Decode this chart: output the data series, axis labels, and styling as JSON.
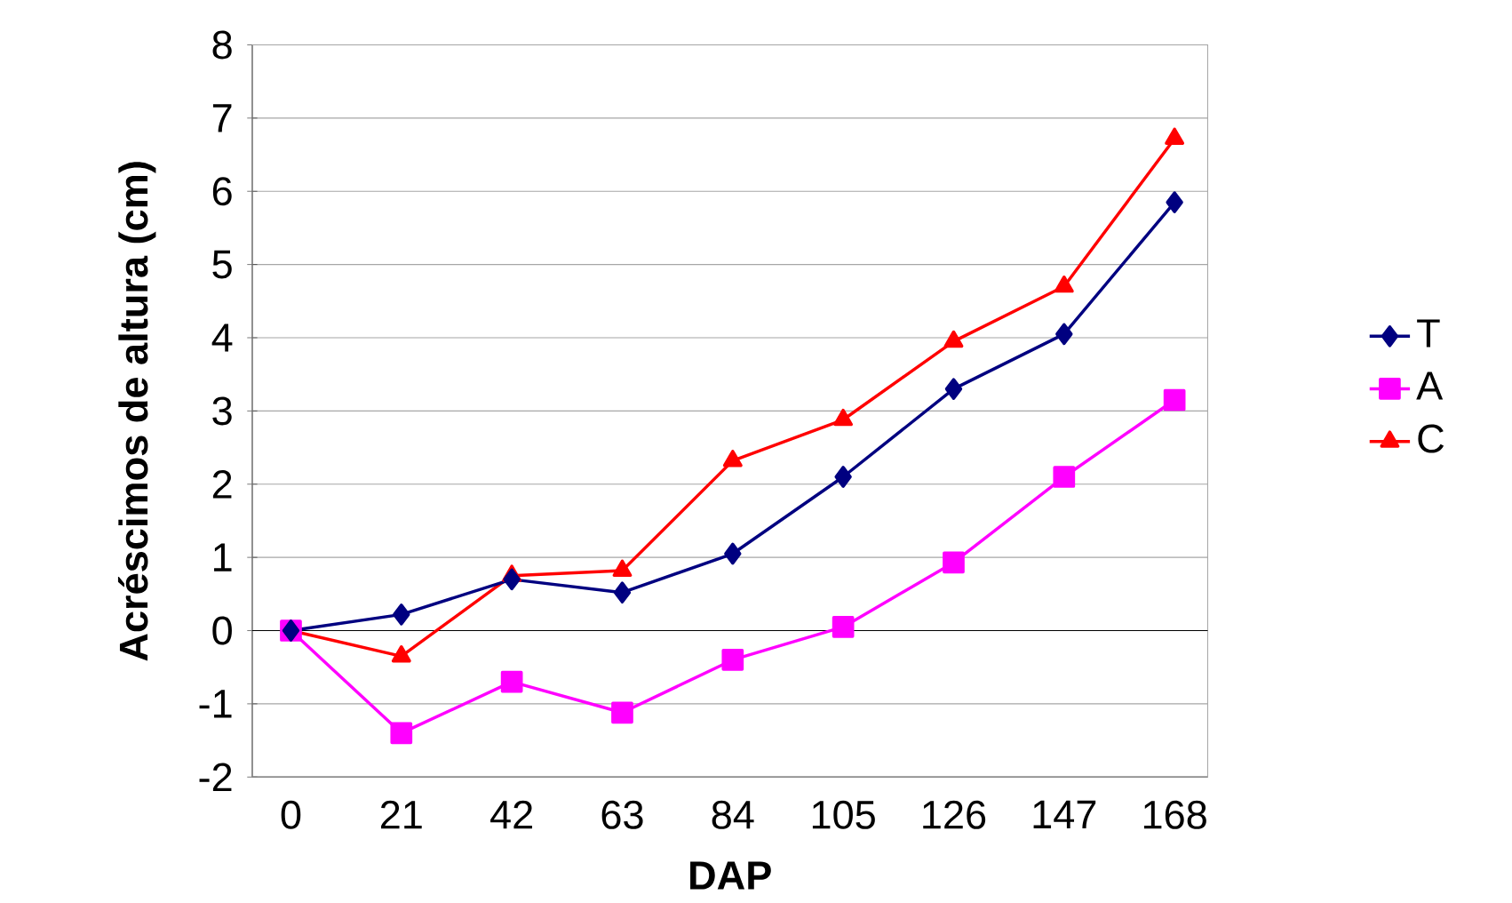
{
  "chart_data": {
    "type": "line",
    "xlabel": "DAP",
    "ylabel": "Acréscimos de altura (cm)",
    "categories": [
      "0",
      "21",
      "42",
      "63",
      "84",
      "105",
      "126",
      "147",
      "168"
    ],
    "series": [
      {
        "name": "T",
        "color": "#000080",
        "marker": "diamond",
        "values": [
          0,
          0.22,
          0.7,
          0.52,
          1.05,
          2.1,
          3.3,
          4.05,
          5.85
        ]
      },
      {
        "name": "A",
        "color": "#ff00ff",
        "marker": "square",
        "values": [
          0,
          -1.4,
          -0.7,
          -1.12,
          -0.4,
          0.05,
          0.93,
          2.1,
          3.15
        ]
      },
      {
        "name": "C",
        "color": "#ff0000",
        "marker": "triangle",
        "values": [
          0,
          -0.35,
          0.75,
          0.82,
          2.32,
          2.88,
          3.95,
          4.7,
          6.72
        ]
      }
    ],
    "ylim": [
      -2,
      8
    ],
    "yticks": [
      -2,
      -1,
      0,
      1,
      2,
      3,
      4,
      5,
      6,
      7,
      8
    ],
    "grid": "y",
    "legend": "right",
    "line_style": "solid"
  }
}
